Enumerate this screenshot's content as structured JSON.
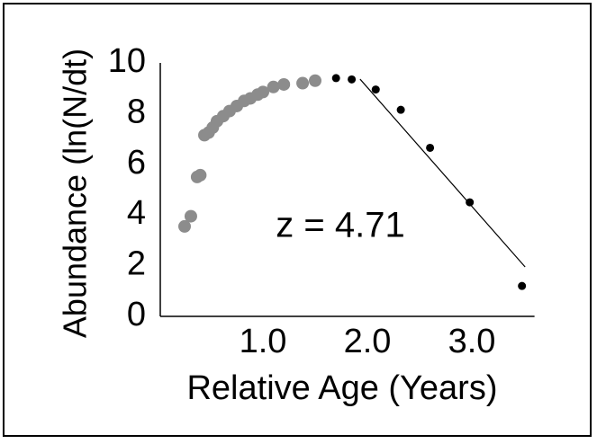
{
  "chart_data": {
    "type": "scatter",
    "xlabel": "Relative Age (Years)",
    "ylabel": "Abundance (ln(N/dt)",
    "annotation": "z = 4.71",
    "xlim": [
      0,
      3.6
    ],
    "ylim": [
      0,
      10
    ],
    "xticks": [
      {
        "value": 1,
        "label": "1.0"
      },
      {
        "value": 2,
        "label": "2.0"
      },
      {
        "value": 3,
        "label": "3.0"
      }
    ],
    "yticks": [
      0,
      2,
      4,
      6,
      8,
      10
    ],
    "grid": false,
    "series": [
      {
        "color": "#8c8c8c",
        "x": [
          0.25,
          0.31,
          0.37,
          0.4,
          0.44,
          0.48,
          0.52,
          0.56,
          0.62,
          0.68,
          0.75,
          0.82,
          0.88,
          0.95,
          1.0,
          1.1,
          1.2,
          1.38,
          1.5
        ],
        "values": [
          3.55,
          3.95,
          5.5,
          5.57,
          7.15,
          7.25,
          7.45,
          7.7,
          7.9,
          8.1,
          8.3,
          8.5,
          8.6,
          8.75,
          8.85,
          9.05,
          9.15,
          9.2,
          9.3
        ]
      },
      {
        "color": "#000000",
        "x": [
          1.7,
          1.85,
          2.08,
          2.32,
          2.6,
          2.98,
          3.48
        ],
        "values": [
          9.4,
          9.35,
          8.95,
          8.15,
          6.65,
          4.5,
          1.2
        ]
      }
    ],
    "fit_line": {
      "color": "#000000",
      "x": [
        1.93,
        3.51
      ],
      "values": [
        9.36,
        1.95
      ]
    }
  }
}
